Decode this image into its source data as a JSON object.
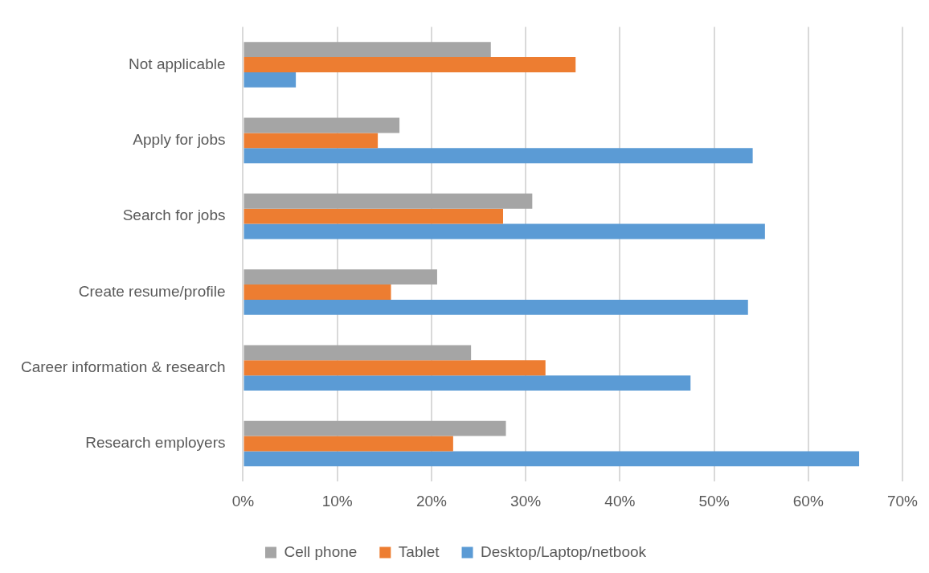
{
  "chart_data": {
    "type": "bar",
    "orientation": "horizontal",
    "categories": [
      "Not applicable",
      "Apply for jobs",
      "Search for jobs",
      "Create resume/profile",
      "Career information & research",
      "Research employers"
    ],
    "series": [
      {
        "name": "Cell phone",
        "color": "#a5a5a5",
        "values": [
          26.3,
          16.6,
          30.7,
          20.6,
          24.2,
          27.9
        ]
      },
      {
        "name": "Tablet",
        "color": "#ed7d31",
        "values": [
          35.3,
          14.3,
          27.6,
          15.7,
          32.1,
          22.3
        ]
      },
      {
        "name": "Desktop/Laptop/netbook",
        "color": "#5b9bd5",
        "values": [
          5.6,
          54.1,
          55.4,
          53.6,
          47.5,
          65.4
        ]
      }
    ],
    "xlim": [
      0,
      70
    ],
    "xticks": [
      {
        "value": 0,
        "label": "0%"
      },
      {
        "value": 10,
        "label": "10%"
      },
      {
        "value": 20,
        "label": "20%"
      },
      {
        "value": 30,
        "label": "30%"
      },
      {
        "value": 40,
        "label": "40%"
      },
      {
        "value": 50,
        "label": "50%"
      },
      {
        "value": 60,
        "label": "60%"
      },
      {
        "value": 70,
        "label": "70%"
      }
    ],
    "grid": "x",
    "legend": "bottom"
  }
}
